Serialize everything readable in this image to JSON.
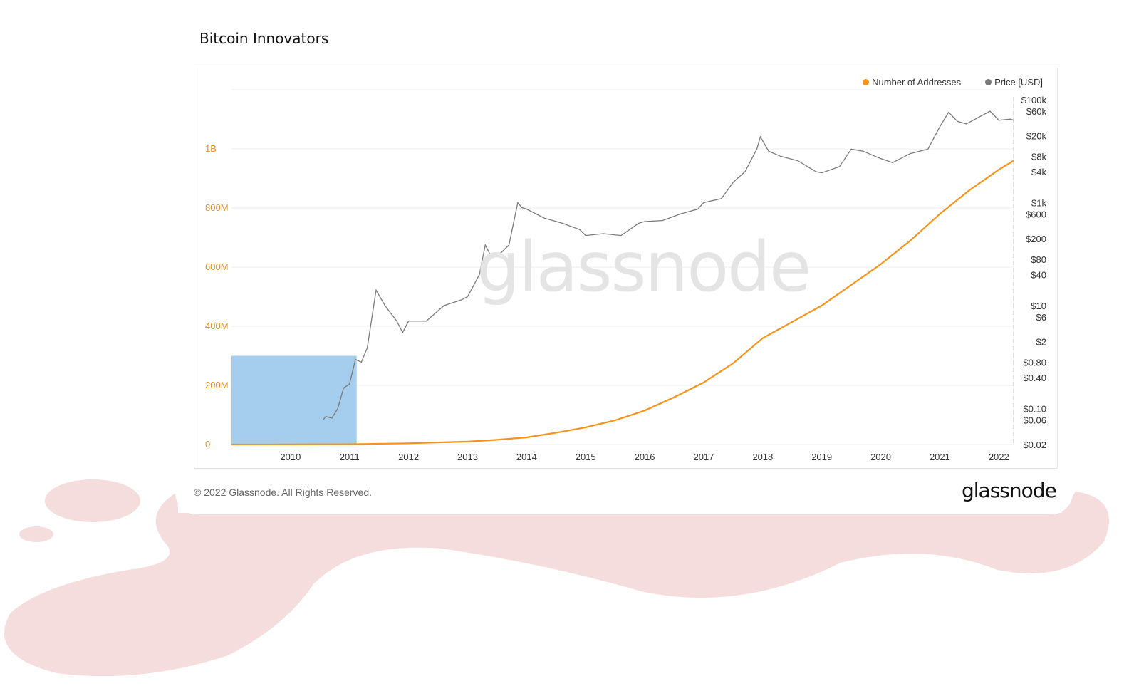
{
  "page": {
    "title": "Bitcoin Innovators"
  },
  "legend": {
    "addresses": {
      "label": "Number of Addresses",
      "color": "#f7931a"
    },
    "price": {
      "label": "Price [USD]",
      "color": "#7a7a7a"
    }
  },
  "watermark": "glassnode",
  "footer": {
    "copyright": "© 2022 Glassnode. All Rights Reserved.",
    "brand": "glassnode"
  },
  "colors": {
    "highlight": "#8fc0e8",
    "background_blob": "#f5dcdd",
    "left_axis": "#e0922b"
  },
  "chart_data": {
    "type": "line",
    "title": "",
    "x_ticks": [
      "2010",
      "2011",
      "2012",
      "2013",
      "2014",
      "2015",
      "2016",
      "2017",
      "2018",
      "2019",
      "2020",
      "2021",
      "2022"
    ],
    "xlim": [
      2009.0,
      2022.25
    ],
    "left_axis": {
      "ticks": [
        {
          "v": 0,
          "label": "0"
        },
        {
          "v": 200,
          "label": "200M"
        },
        {
          "v": 400,
          "label": "400M"
        },
        {
          "v": 600,
          "label": "600M"
        },
        {
          "v": 800,
          "label": "800M"
        },
        {
          "v": 1000,
          "label": "1B"
        }
      ],
      "unit": "millions of addresses",
      "ylim": [
        0,
        1200
      ]
    },
    "right_axis": {
      "scale": "log",
      "ticks": [
        {
          "v": 100000,
          "label": "$100k"
        },
        {
          "v": 60000,
          "label": "$60k"
        },
        {
          "v": 20000,
          "label": "$20k"
        },
        {
          "v": 8000,
          "label": "$8k"
        },
        {
          "v": 4000,
          "label": "$4k"
        },
        {
          "v": 1000,
          "label": "$1k"
        },
        {
          "v": 600,
          "label": "$600"
        },
        {
          "v": 200,
          "label": "$200"
        },
        {
          "v": 80,
          "label": "$80"
        },
        {
          "v": 40,
          "label": "$40"
        },
        {
          "v": 10,
          "label": "$10"
        },
        {
          "v": 6,
          "label": "$6"
        },
        {
          "v": 2,
          "label": "$2"
        },
        {
          "v": 0.8,
          "label": "$0.80"
        },
        {
          "v": 0.4,
          "label": "$0.40"
        },
        {
          "v": 0.1,
          "label": "$0.10"
        },
        {
          "v": 0.06,
          "label": "$0.06"
        },
        {
          "v": 0.02,
          "label": "$0.02"
        }
      ],
      "ylim": [
        0.02,
        100000
      ]
    },
    "series": [
      {
        "name": "Number of Addresses",
        "color": "#f7931a",
        "x": [
          2009.0,
          2010.0,
          2011.0,
          2012.0,
          2013.0,
          2013.5,
          2014.0,
          2014.5,
          2015.0,
          2015.5,
          2016.0,
          2016.5,
          2017.0,
          2017.5,
          2018.0,
          2018.5,
          2019.0,
          2019.5,
          2020.0,
          2020.5,
          2021.0,
          2021.5,
          2022.0,
          2022.25
        ],
        "values": [
          0,
          0.3,
          1,
          4,
          10,
          16,
          24,
          40,
          58,
          82,
          115,
          160,
          210,
          275,
          360,
          415,
          470,
          540,
          610,
          690,
          780,
          860,
          930,
          960
        ]
      },
      {
        "name": "Price [USD]",
        "color": "#7a7a7a",
        "x": [
          2010.55,
          2010.6,
          2010.7,
          2010.8,
          2010.9,
          2011.0,
          2011.1,
          2011.2,
          2011.3,
          2011.45,
          2011.6,
          2011.8,
          2011.9,
          2012.0,
          2012.3,
          2012.6,
          2012.9,
          2013.0,
          2013.2,
          2013.3,
          2013.4,
          2013.5,
          2013.7,
          2013.85,
          2013.92,
          2014.0,
          2014.3,
          2014.6,
          2014.9,
          2015.0,
          2015.3,
          2015.6,
          2015.9,
          2016.0,
          2016.3,
          2016.6,
          2016.9,
          2017.0,
          2017.3,
          2017.5,
          2017.7,
          2017.9,
          2017.96,
          2018.1,
          2018.3,
          2018.6,
          2018.9,
          2019.0,
          2019.3,
          2019.5,
          2019.7,
          2019.9,
          2020.0,
          2020.2,
          2020.5,
          2020.8,
          2021.0,
          2021.15,
          2021.3,
          2021.45,
          2021.6,
          2021.85,
          2022.0,
          2022.2,
          2022.25
        ],
        "values": [
          0.06,
          0.07,
          0.065,
          0.1,
          0.25,
          0.3,
          0.9,
          0.8,
          1.5,
          20,
          10,
          5,
          3,
          5,
          5,
          10,
          13,
          15,
          40,
          150,
          90,
          90,
          150,
          1000,
          800,
          750,
          500,
          400,
          300,
          230,
          250,
          230,
          400,
          430,
          450,
          600,
          750,
          1000,
          1200,
          2500,
          4000,
          11000,
          19000,
          10000,
          8000,
          6500,
          4000,
          3800,
          5000,
          11000,
          10000,
          8000,
          7200,
          6000,
          9000,
          11000,
          30000,
          57000,
          38000,
          34000,
          42000,
          60000,
          40000,
          42000,
          40000
        ]
      }
    ],
    "highlight": {
      "x": [
        2009.0,
        2011.12
      ],
      "y_millions": [
        0,
        300
      ]
    }
  }
}
